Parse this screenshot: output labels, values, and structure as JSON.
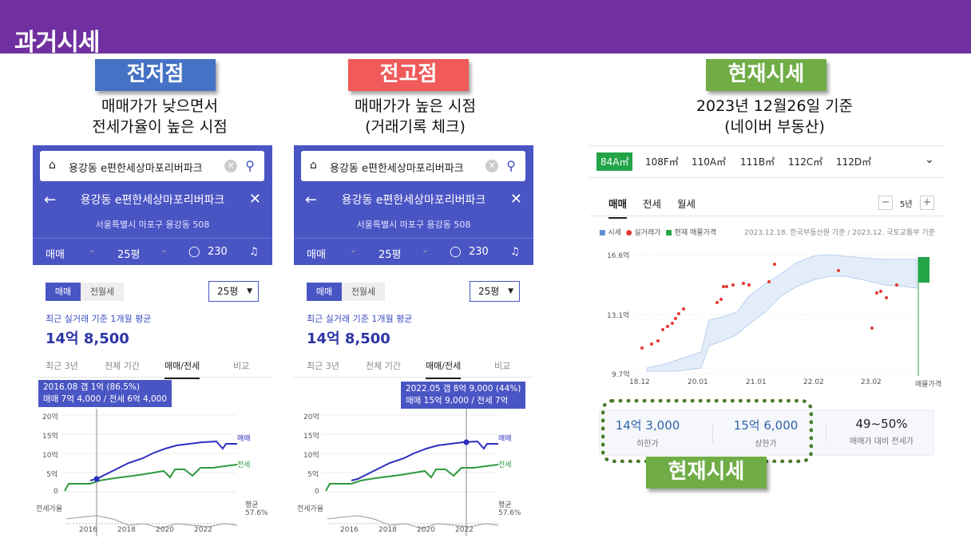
{
  "slide": {
    "title": "과거시세",
    "panels": [
      {
        "tag": "전저점",
        "tag_color": "#4472c4",
        "caption": [
          "매매가가 낮으면서",
          "전세가율이 높은 시점"
        ]
      },
      {
        "tag": "전고점",
        "tag_color": "#f05a5a",
        "caption": [
          "매매가가 높은 시점",
          "(거래기록 체크)"
        ]
      },
      {
        "tag": "현재시세",
        "tag_color": "#70ad47",
        "caption": [
          "2023년 12월26일 기준",
          "(네이버 부동산)"
        ]
      }
    ],
    "bottom_tag": "현재시세"
  },
  "phones": [
    {
      "search_text": "용강동 e편한세상마포리버파크",
      "clear_icon": "clear-icon",
      "search_icon": "search-icon",
      "title": "용강동 e편한세상마포리버파크",
      "address": "서울특별시 마포구 용강동 508",
      "tabs": {
        "deal": "매매",
        "size": "25평",
        "comments": "230"
      },
      "seg": [
        "매매",
        "전월세"
      ],
      "size_select": "25평",
      "avg_label": "최근 실거래 기준 1개월 평균",
      "price": "14억 8,500",
      "ranges": [
        "최근 3년",
        "전체 기간",
        "매매/전세",
        "비교"
      ],
      "tooltip": [
        "2016.08  갭 1억 (86.5%)",
        "매매 7억 4,000 / 전세 6억 4,000"
      ],
      "y_ticks": [
        "20억",
        "15억",
        "10억",
        "5억",
        "0"
      ],
      "x_ticks": [
        "2016",
        "2018",
        "2020",
        "2022"
      ],
      "series_labels": [
        "매매",
        "전세"
      ],
      "ratio_label": "전세가율",
      "ratio_avg": [
        "평균",
        "57.6%"
      ]
    },
    {
      "search_text": "용강동 e편한세상마포리버파크",
      "clear_icon": "clear-icon",
      "search_icon": "search-icon",
      "title": "용강동 e편한세상마포리버파크",
      "address": "서울특별시 마포구 용강동 508",
      "tabs": {
        "deal": "매매",
        "size": "25평",
        "comments": "230"
      },
      "seg": [
        "매매",
        "전월세"
      ],
      "size_select": "25평",
      "avg_label": "최근 실거래 기준 1개월 평균",
      "price": "14억 8,500",
      "ranges": [
        "최근 3년",
        "전체 기간",
        "매매/전세",
        "비교"
      ],
      "tooltip": [
        "2022.05  갭 8억 9,000 (44%)",
        "매매 15억 9,000 / 전세 7억"
      ],
      "y_ticks": [
        "20억",
        "15억",
        "10억",
        "5억",
        "0"
      ],
      "x_ticks": [
        "2016",
        "2018",
        "2020",
        "2022"
      ],
      "series_labels": [
        "매매",
        "전세"
      ],
      "ratio_label": "전세가율",
      "ratio_avg": [
        "평균",
        "57.6%"
      ]
    }
  ],
  "market": {
    "size_tabs": [
      "84A㎡",
      "108F㎡",
      "110A㎡",
      "111B㎡",
      "112C㎡",
      "112D㎡"
    ],
    "sub_tabs": [
      "매매",
      "전세",
      "월세"
    ],
    "period": "5년",
    "legend": [
      "시세",
      "실거래가",
      "현재 매물가격"
    ],
    "source": "2023.12.18. 한국부동산원 기준 / 2023.12. 국토교통부 기준",
    "y_ticks": [
      "16.6억",
      "13.1억",
      "9.7억"
    ],
    "x_ticks": [
      "18.12",
      "20.01",
      "21.01",
      "22.02",
      "23.02",
      "매물가격"
    ],
    "stats": [
      {
        "value": "14억 3,000",
        "label": "하한가"
      },
      {
        "value": "15억 6,000",
        "label": "상한가"
      },
      {
        "value": "49~50%",
        "label": "매매가 대비 전세가"
      }
    ]
  },
  "colors": {
    "banner": "#7030a0",
    "naver_blue": "#4a55c4",
    "sale_line": "#2d2dc0",
    "jeonse_line": "#2f9a3e",
    "deal_dot": "#e53935",
    "green": "#22a447"
  }
}
